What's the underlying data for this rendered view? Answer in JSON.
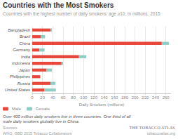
{
  "chart_data": {
    "type": "bar",
    "orientation": "horizontal",
    "stacked": true,
    "title": "Countries with the Most Smokers",
    "subtitle": "Countries with the highest number of daily smokers: age ≥10, in millions, 2015",
    "xlabel": "Daily Smokers (millions)",
    "categories": [
      "Bangladesh",
      "Brazil",
      "China",
      "Germany",
      "India",
      "Indonesia",
      "Japan",
      "Philippines",
      "Russia",
      "United States"
    ],
    "series": [
      {
        "name": "Male",
        "color": "#e8483a",
        "values": [
          36,
          17,
          252,
          14,
          91,
          57,
          28,
          15,
          36,
          24
        ]
      },
      {
        "name": "Female",
        "color": "#8ecec4",
        "values": [
          2,
          8,
          14,
          10,
          14,
          3,
          10,
          1,
          9,
          22
        ]
      }
    ],
    "xlim": [
      0,
      270
    ],
    "xticks": [
      0,
      20,
      40,
      60,
      80,
      100,
      120,
      140,
      160,
      180,
      200,
      220,
      240,
      260
    ],
    "grid": true,
    "legend": "lower left",
    "annotations": [
      "Over 400 million daily smokers live in three countries. One third of all male daily smokers globally live in China.",
      "Sources:",
      "WHO, GBD 2015 Tobacco Collaborators",
      "THE TOBACCO ATLAS",
      "tobaccoatlas.org"
    ]
  }
}
